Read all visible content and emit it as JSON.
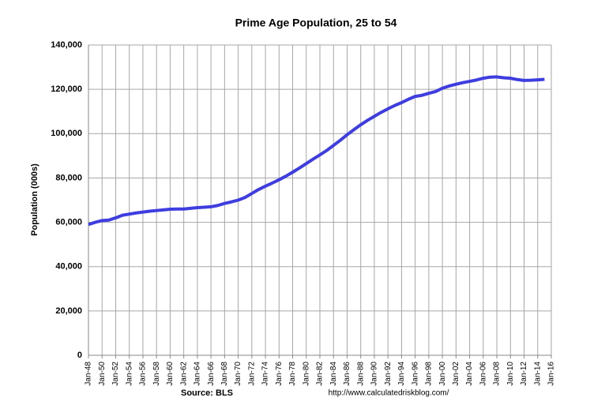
{
  "chart_data": {
    "type": "line",
    "title": "Prime Age Population, 25 to 54",
    "y_label": "Population (000s)",
    "source": "Source: BLS",
    "note": "http://www.calculatedriskblog.com/",
    "x": [
      "Jan-48",
      "Jan-49",
      "Jan-50",
      "Jan-51",
      "Jan-52",
      "Jan-53",
      "Jan-54",
      "Jan-55",
      "Jan-56",
      "Jan-57",
      "Jan-58",
      "Jan-59",
      "Jan-60",
      "Jan-61",
      "Jan-62",
      "Jan-63",
      "Jan-64",
      "Jan-65",
      "Jan-66",
      "Jan-67",
      "Jan-68",
      "Jan-69",
      "Jan-70",
      "Jan-71",
      "Jan-72",
      "Jan-73",
      "Jan-74",
      "Jan-75",
      "Jan-76",
      "Jan-77",
      "Jan-78",
      "Jan-79",
      "Jan-80",
      "Jan-81",
      "Jan-82",
      "Jan-83",
      "Jan-84",
      "Jan-85",
      "Jan-86",
      "Jan-87",
      "Jan-88",
      "Jan-89",
      "Jan-90",
      "Jan-91",
      "Jan-92",
      "Jan-93",
      "Jan-94",
      "Jan-95",
      "Jan-96",
      "Jan-97",
      "Jan-98",
      "Jan-99",
      "Jan-00",
      "Jan-01",
      "Jan-02",
      "Jan-03",
      "Jan-04",
      "Jan-05",
      "Jan-06",
      "Jan-07",
      "Jan-08",
      "Jan-09",
      "Jan-10",
      "Jan-11",
      "Jan-12",
      "Jan-13",
      "Jan-14",
      "Jan-15"
    ],
    "series": [
      {
        "name": "Prime Age Population",
        "color": "#3d3de0",
        "values": [
          59000,
          60000,
          60800,
          61000,
          62000,
          63200,
          63700,
          64200,
          64600,
          65000,
          65300,
          65600,
          65900,
          66000,
          66000,
          66300,
          66600,
          66800,
          67000,
          67600,
          68500,
          69200,
          70000,
          71200,
          73000,
          74800,
          76300,
          77700,
          79200,
          80800,
          82600,
          84500,
          86500,
          88500,
          90400,
          92400,
          94700,
          97000,
          99500,
          101800,
          104000,
          106000,
          107800,
          109600,
          111200,
          112700,
          114000,
          115500,
          116800,
          117300,
          118200,
          119000,
          120500,
          121500,
          122300,
          123000,
          123600,
          124200,
          125000,
          125500,
          125600,
          125200,
          125000,
          124400,
          124000,
          124100,
          124300,
          124500
        ]
      }
    ],
    "xlim": [
      "Jan-48",
      "Jan-16"
    ],
    "xticks": [
      "Jan-48",
      "Jan-50",
      "Jan-52",
      "Jan-54",
      "Jan-56",
      "Jan-58",
      "Jan-60",
      "Jan-62",
      "Jan-64",
      "Jan-66",
      "Jan-68",
      "Jan-70",
      "Jan-72",
      "Jan-74",
      "Jan-76",
      "Jan-78",
      "Jan-80",
      "Jan-82",
      "Jan-84",
      "Jan-86",
      "Jan-88",
      "Jan-90",
      "Jan-92",
      "Jan-94",
      "Jan-96",
      "Jan-98",
      "Jan-00",
      "Jan-02",
      "Jan-04",
      "Jan-06",
      "Jan-08",
      "Jan-10",
      "Jan-12",
      "Jan-14",
      "Jan-16"
    ],
    "ylim": [
      0,
      140000
    ],
    "yticks": [
      0,
      {
        "value": 20000,
        "label": "20,000"
      },
      {
        "value": 40000,
        "label": "40,000"
      },
      {
        "value": 60000,
        "label": "60,000"
      },
      {
        "value": 80000,
        "label": "80,000"
      },
      {
        "value": 100000,
        "label": "100,000"
      },
      {
        "value": 120000,
        "label": "120,000"
      },
      {
        "value": 140000,
        "label": "140,000"
      }
    ],
    "grid": true
  }
}
